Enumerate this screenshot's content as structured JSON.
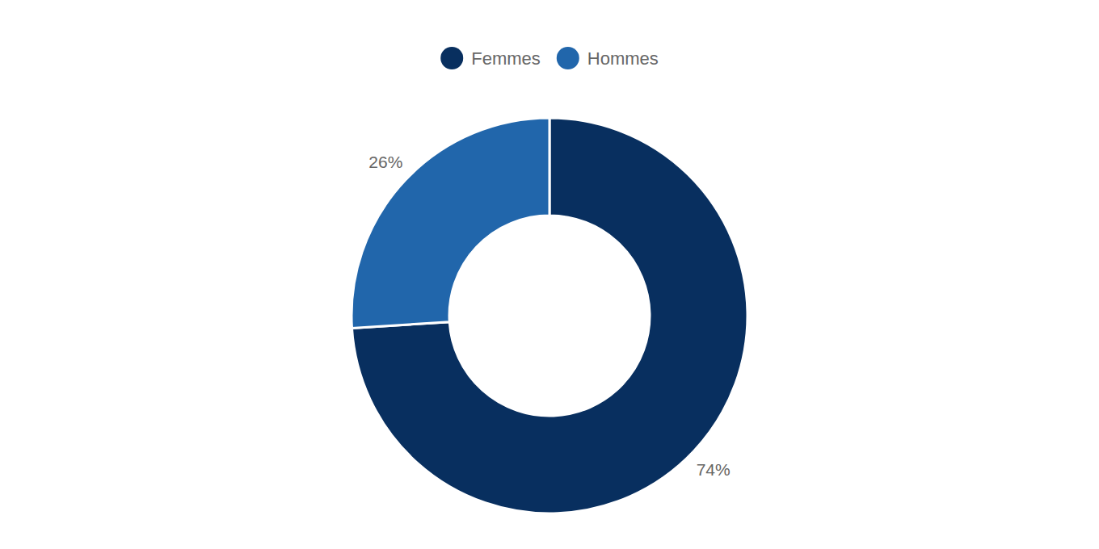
{
  "chart_data": {
    "type": "pie",
    "donut": true,
    "categories": [
      "Femmes",
      "Hommes"
    ],
    "values": [
      74,
      26
    ],
    "value_labels": [
      "74%",
      "26%"
    ],
    "colors": [
      "#082f5f",
      "#2166ab"
    ],
    "data_labels": true,
    "legend": "top"
  }
}
